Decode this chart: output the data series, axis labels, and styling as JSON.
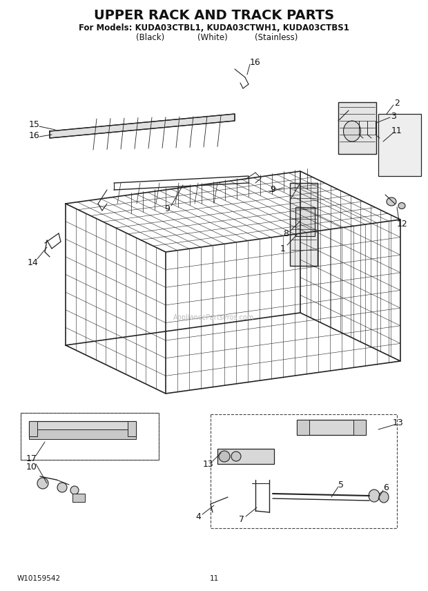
{
  "title": "UPPER RACK AND TRACK PARTS",
  "subtitle1": "For Models: KUDA03CTBL1, KUDA03CTWH1, KUDA03CTBS1",
  "subtitle2_col1": "(Black)",
  "subtitle2_col2": "(White)",
  "subtitle2_col3": "(Stainless)",
  "footer_left": "W10159542",
  "footer_center": "11",
  "bg_color": "#ffffff",
  "line_color": "#222222",
  "label_color": "#111111",
  "title_fontsize": 14,
  "subtitle_fontsize": 8.5,
  "label_fontsize": 9,
  "footer_fontsize": 7.5,
  "watermark": "AppliancePartsPros.com"
}
